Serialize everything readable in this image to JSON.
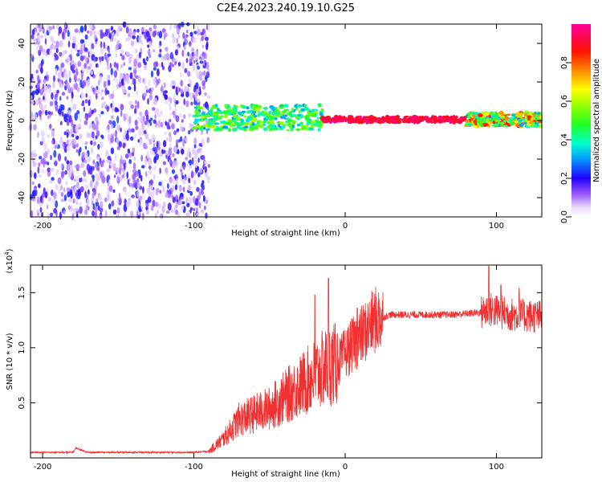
{
  "title": "C2E4.2023.240.19.10.G25",
  "chart_data": [
    {
      "type": "heatmap",
      "xlabel": "Height of straight line (km)",
      "ylabel": "Frequency (Hz)",
      "xlim": [
        -208,
        130
      ],
      "ylim": [
        -50,
        50
      ],
      "xticks": [
        -200,
        -100,
        0,
        100
      ],
      "yticks": [
        -40,
        -20,
        0,
        20,
        40
      ],
      "colorbar": {
        "label": "Normalized spectral amplitude",
        "range": [
          0,
          1
        ],
        "ticks": [
          0.0,
          0.2,
          0.4,
          0.6,
          0.8
        ],
        "tick_labels": [
          "0.0",
          "0.2",
          "0.4",
          "0.6",
          "0.8"
        ]
      },
      "regions": [
        {
          "x": [
            -208,
            -90
          ],
          "frequency": [
            -50,
            50
          ],
          "amplitude": [
            0.05,
            0.25
          ],
          "description_key": "noise"
        },
        {
          "x": [
            -100,
            -15
          ],
          "frequency": [
            -5,
            8
          ],
          "amplitude": [
            0.3,
            0.6
          ]
        },
        {
          "x": [
            -15,
            80
          ],
          "frequency": [
            -1,
            2
          ],
          "amplitude": [
            0.85,
            1.0
          ]
        },
        {
          "x": [
            80,
            130
          ],
          "frequency": [
            -3,
            4
          ],
          "amplitude": [
            0.3,
            0.9
          ]
        }
      ]
    },
    {
      "type": "line",
      "xlabel": "Height of straight line (km)",
      "ylabel": "SNR (10 * v/v)",
      "yscale_label": "(x10",
      "yscale_exp": "4",
      "yscale_close": ")",
      "xlim": [
        -208,
        130
      ],
      "ylim": [
        0,
        17500
      ],
      "xticks": [
        -200,
        -100,
        0,
        100
      ],
      "yticks": [
        5000,
        10000,
        15000
      ],
      "ytick_labels": [
        "0.5",
        "1.0",
        "1.5"
      ],
      "color": "#f03030",
      "envelope": [
        {
          "x": -208,
          "y": 500
        },
        {
          "x": -180,
          "y": 500
        },
        {
          "x": -178,
          "y": 900
        },
        {
          "x": -170,
          "y": 500
        },
        {
          "x": -100,
          "y": 500
        },
        {
          "x": -90,
          "y": 600
        },
        {
          "x": -80,
          "y": 1800
        },
        {
          "x": -70,
          "y": 3500
        },
        {
          "x": -60,
          "y": 4000
        },
        {
          "x": -50,
          "y": 4500
        },
        {
          "x": -40,
          "y": 5500
        },
        {
          "x": -30,
          "y": 6500
        },
        {
          "x": -20,
          "y": 7500
        },
        {
          "x": -10,
          "y": 8500
        },
        {
          "x": -5,
          "y": 8500
        },
        {
          "x": 0,
          "y": 9500
        },
        {
          "x": 10,
          "y": 11000
        },
        {
          "x": 20,
          "y": 12500
        },
        {
          "x": 30,
          "y": 13000
        },
        {
          "x": 50,
          "y": 13000
        },
        {
          "x": 70,
          "y": 13000
        },
        {
          "x": 90,
          "y": 13200
        },
        {
          "x": 95,
          "y": 13500
        },
        {
          "x": 110,
          "y": 13000
        },
        {
          "x": 130,
          "y": 12800
        }
      ],
      "spikes": [
        {
          "x": -11,
          "y": 16300
        },
        {
          "x": -20,
          "y": 14800
        },
        {
          "x": 95,
          "y": 17400
        },
        {
          "x": 103,
          "y": 15700
        },
        {
          "x": 115,
          "y": 15400
        },
        {
          "x": 8,
          "y": 13600
        }
      ]
    }
  ]
}
